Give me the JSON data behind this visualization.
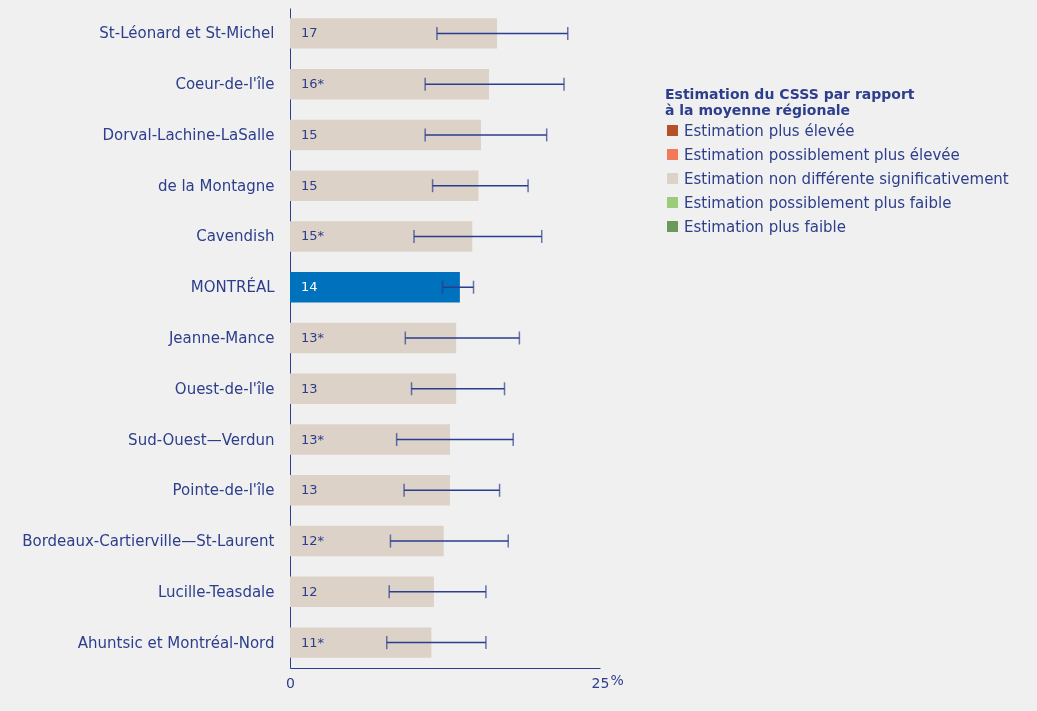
{
  "chart_data": {
    "type": "bar",
    "orientation": "horizontal",
    "categories": [
      "St-Léonard et St-Michel",
      "Coeur-de-l'île",
      "Dorval-Lachine-LaSalle",
      "de la Montagne",
      "Cavendish",
      "MONTRÉAL",
      "Jeanne-Mance",
      "Ouest-de-l'île",
      "Sud-Ouest—Verdun",
      "Pointe-de-l'île",
      "Bordeaux-Cartierville—St-Laurent",
      "Lucille-Teasdale",
      "Ahuntsic et Montréal-Nord"
    ],
    "series": [
      {
        "name": "Estimation plus élevée",
        "color": "#b5502a",
        "values": [
          null,
          null,
          null,
          null,
          null,
          null,
          null,
          null,
          null,
          null,
          null,
          null,
          null
        ]
      },
      {
        "name": "Estimation possiblement plus élevée",
        "color": "#f07a5a",
        "values": [
          null,
          null,
          null,
          null,
          null,
          null,
          null,
          null,
          null,
          null,
          null,
          null,
          null
        ]
      },
      {
        "name": "Estimation non différente significativement",
        "color": "#dcd2c8",
        "values": [
          16.7,
          16.05,
          15.4,
          15.2,
          14.7,
          null,
          13.4,
          13.4,
          12.9,
          12.9,
          12.4,
          11.6,
          11.4
        ],
        "errors": [
          [
            11.85,
            22.4
          ],
          [
            10.9,
            22.1
          ],
          [
            10.9,
            20.7
          ],
          [
            11.5,
            19.2
          ],
          [
            10.0,
            20.3
          ],
          null,
          [
            9.3,
            18.5
          ],
          [
            9.8,
            17.3
          ],
          [
            8.6,
            18.0
          ],
          [
            9.2,
            16.9
          ],
          [
            8.1,
            17.6
          ],
          [
            8.0,
            15.8
          ],
          [
            7.8,
            15.8
          ]
        ],
        "value_labels": [
          "17",
          "16*",
          "15",
          "15",
          "15*",
          null,
          "13*",
          "13",
          "13*",
          "13",
          "12*",
          "12",
          "11*"
        ]
      },
      {
        "name": "Estimation possiblement plus faible",
        "color": "#9ccc7a",
        "values": [
          null,
          null,
          null,
          null,
          null,
          null,
          null,
          null,
          null,
          null,
          null,
          null,
          null
        ]
      },
      {
        "name": "Estimation plus faible",
        "color": "#6a9a5a",
        "values": [
          null,
          null,
          null,
          null,
          null,
          null,
          null,
          null,
          null,
          null,
          null,
          null,
          null
        ]
      },
      {
        "color": "#0071bc",
        "values": [
          null,
          null,
          null,
          null,
          null,
          13.7,
          null,
          null,
          null,
          null,
          null,
          null,
          null
        ],
        "errors": [
          null,
          null,
          null,
          null,
          null,
          [
            12.3,
            14.8
          ],
          null,
          null,
          null,
          null,
          null,
          null,
          null
        ],
        "value_labels": [
          null,
          null,
          null,
          null,
          null,
          "14",
          null,
          null,
          null,
          null,
          null,
          null,
          null
        ]
      }
    ],
    "xlabel": "%",
    "xlim": [
      0,
      25
    ],
    "xticks": [
      0,
      25
    ],
    "legend_title": "Estimation du CSSS par rapport\nà la moyenne régionale",
    "legend": "top right",
    "grid": false
  }
}
